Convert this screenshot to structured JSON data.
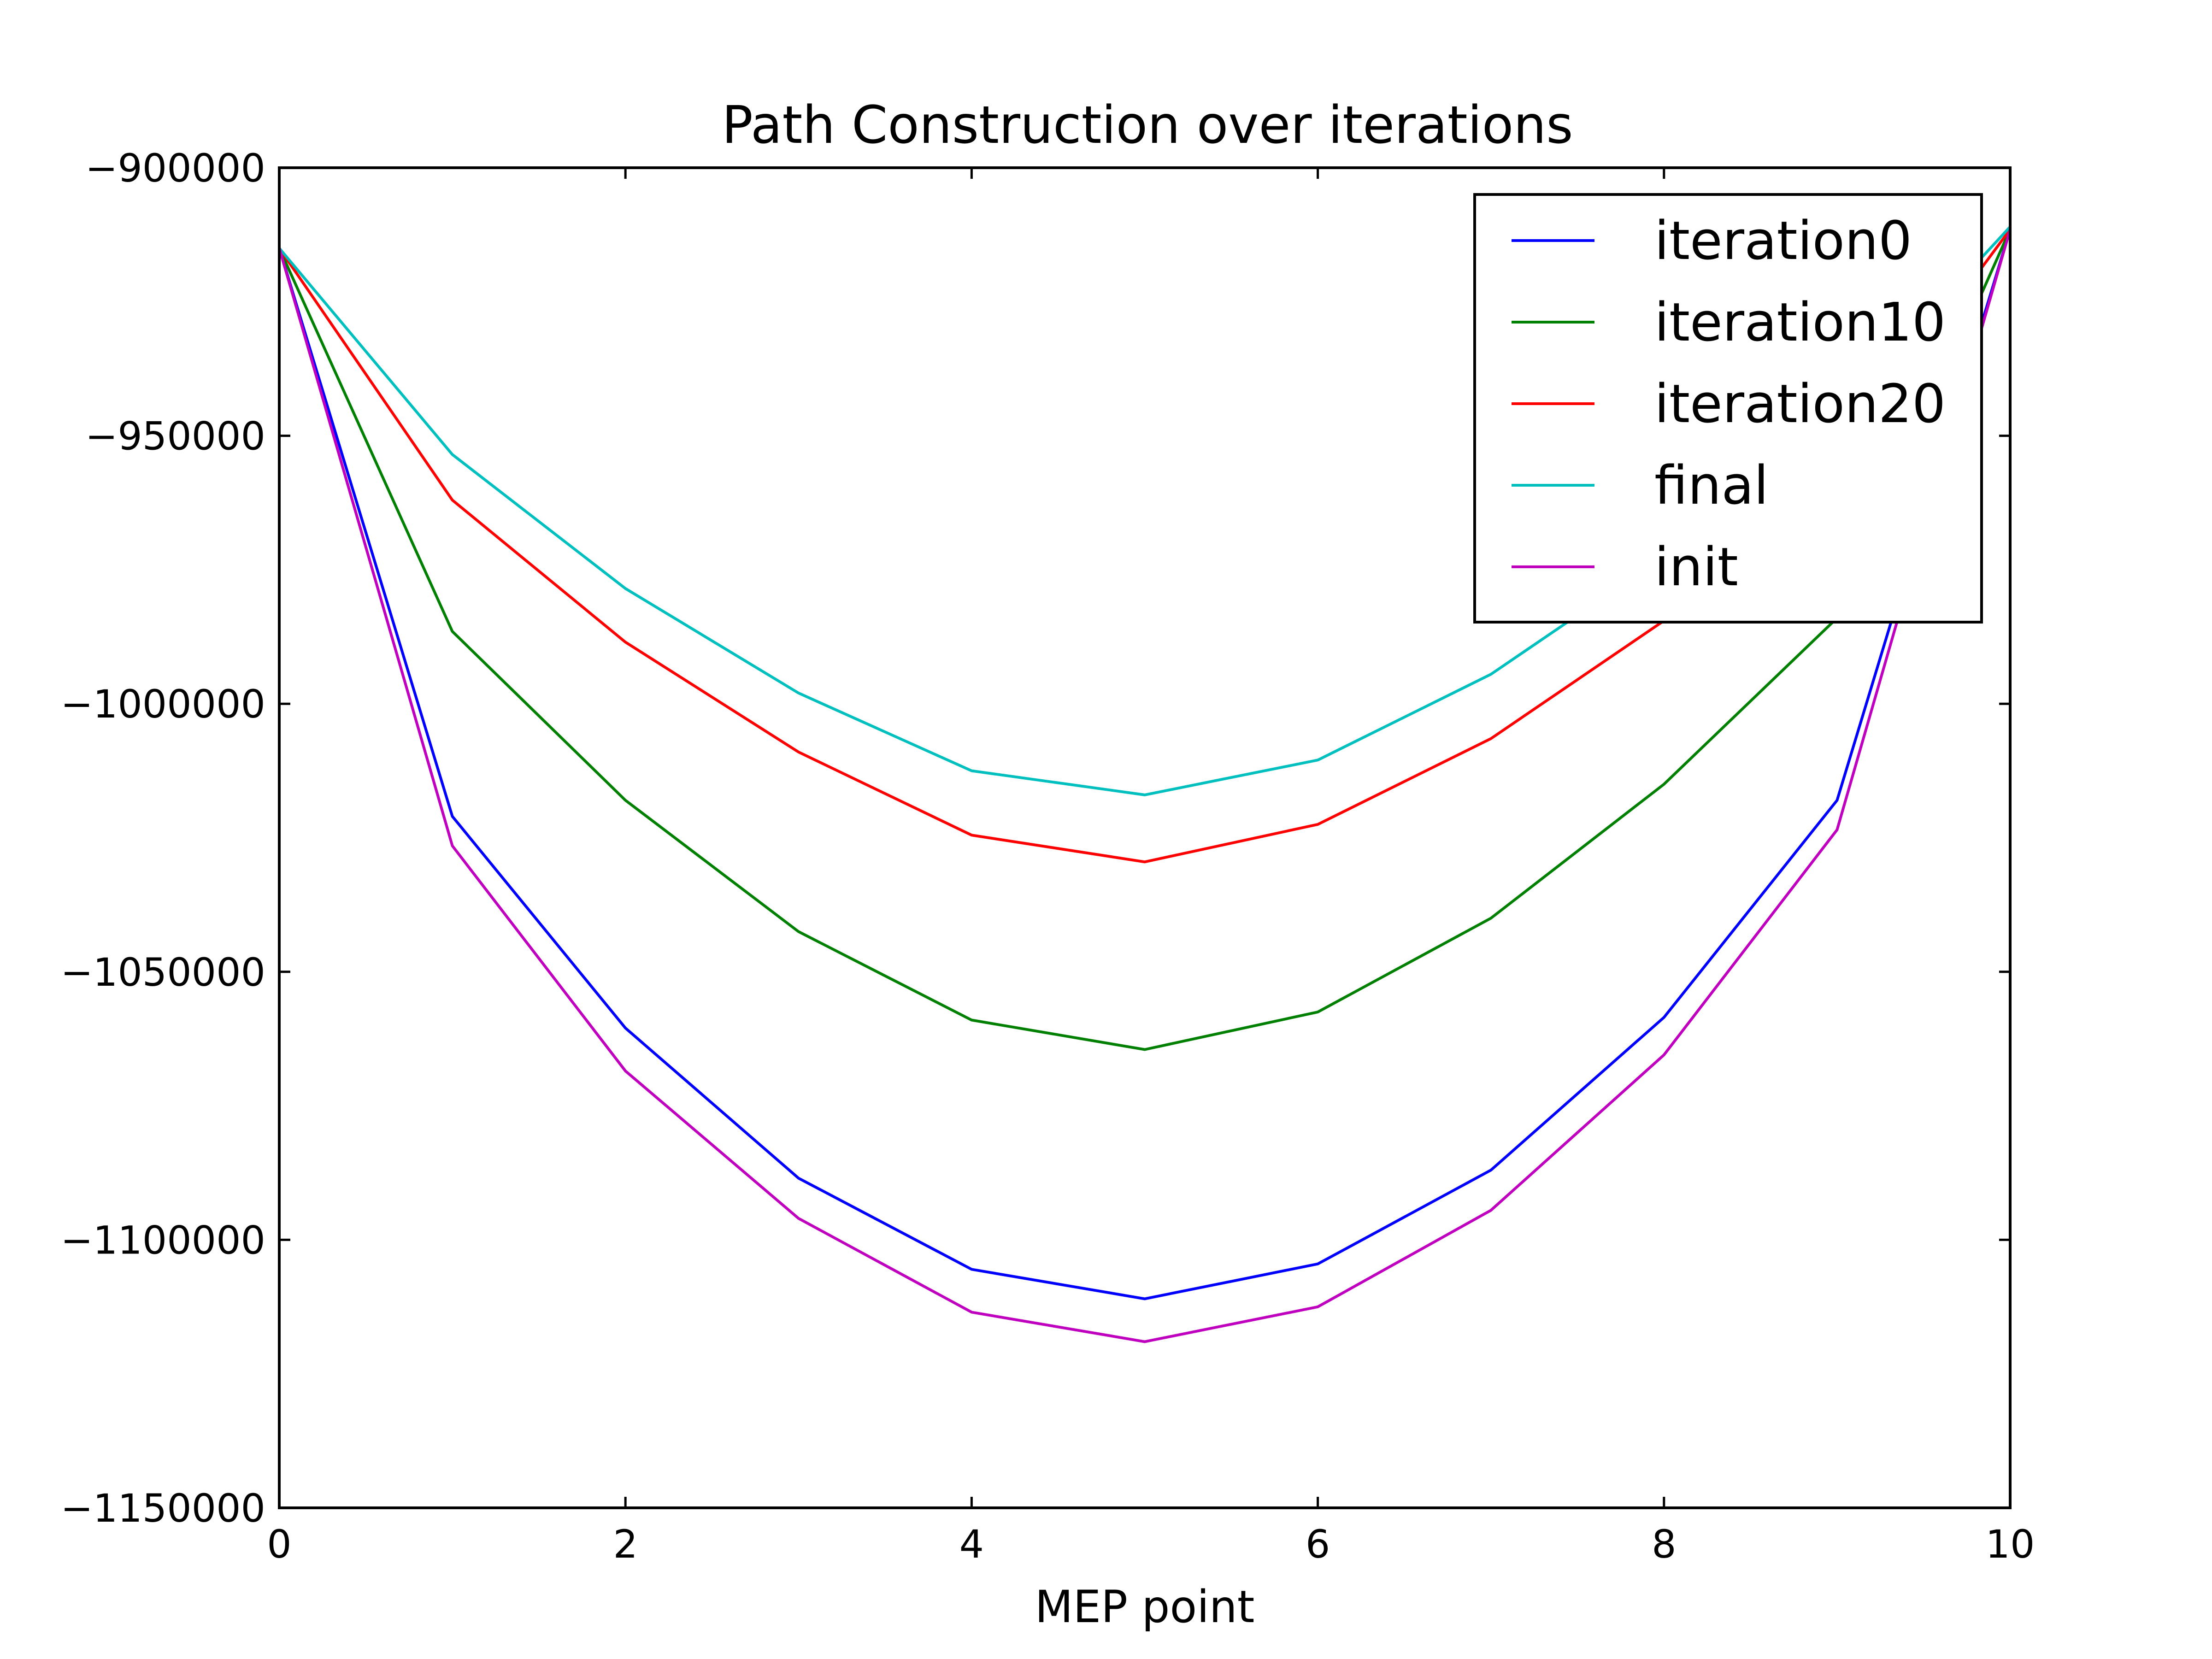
{
  "chart_data": {
    "type": "line",
    "title": "Path Construction over iterations",
    "xlabel": "MEP point",
    "ylabel": "",
    "xlim": [
      0,
      10
    ],
    "ylim": [
      -1150000,
      -900000
    ],
    "xticks": [
      0,
      2,
      4,
      6,
      8,
      10
    ],
    "xtick_labels": [
      "0",
      "2",
      "4",
      "6",
      "8",
      "10"
    ],
    "yticks": [
      -900000,
      -950000,
      -1000000,
      -1050000,
      -1100000,
      -1150000
    ],
    "ytick_labels": [
      "−900000",
      "−950000",
      "−1000000",
      "−1050000",
      "−1100000",
      "−1150000"
    ],
    "grid": false,
    "legend_position": "top-right",
    "x": [
      0,
      1,
      2,
      3,
      4,
      5,
      6,
      7,
      8,
      9,
      10
    ],
    "series": [
      {
        "name": "iteration0",
        "color": "#0000ff",
        "values": [
          -915000,
          -1021000,
          -1060500,
          -1088500,
          -1105500,
          -1111000,
          -1104500,
          -1087000,
          -1058500,
          -1018000,
          -911500
        ]
      },
      {
        "name": "iteration10",
        "color": "#008000",
        "values": [
          -915000,
          -986500,
          -1018000,
          -1042500,
          -1059000,
          -1064500,
          -1057500,
          -1040000,
          -1015000,
          -984000,
          -911500
        ]
      },
      {
        "name": "iteration20",
        "color": "#ff0000",
        "values": [
          -915000,
          -962000,
          -988500,
          -1009000,
          -1024500,
          -1029500,
          -1022500,
          -1006500,
          -984500,
          -955000,
          -911500
        ]
      },
      {
        "name": "final",
        "color": "#00bfbf",
        "values": [
          -915000,
          -953500,
          -978500,
          -998000,
          -1012500,
          -1017000,
          -1010500,
          -994500,
          -972500,
          -946000,
          -911000
        ]
      },
      {
        "name": "init",
        "color": "#bf00bf",
        "values": [
          -915000,
          -1026500,
          -1068500,
          -1096000,
          -1113500,
          -1119000,
          -1112500,
          -1094500,
          -1065500,
          -1023500,
          -911500
        ]
      }
    ]
  }
}
